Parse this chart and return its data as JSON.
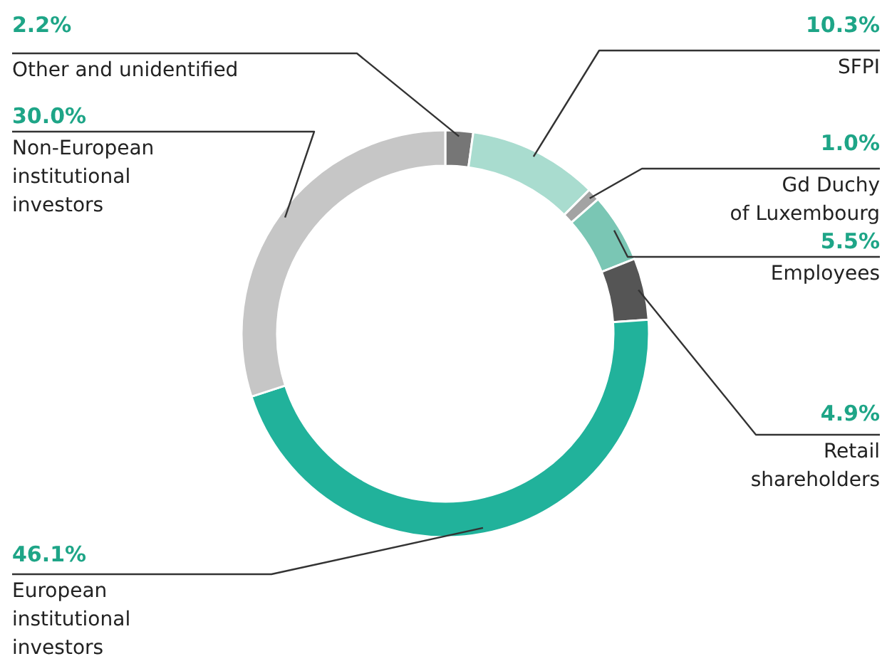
{
  "chart_data": {
    "type": "donut",
    "categories": [
      "Other and unidentified",
      "SFPI",
      "Gd Duchy\nof Luxembourg",
      "Employees",
      "Retail\nshareholders",
      "European\ninstitutional\ninvestors",
      "Non-European\ninstitutional\ninvestors"
    ],
    "values": [
      2.2,
      10.3,
      1.0,
      5.5,
      4.9,
      46.1,
      30.0
    ],
    "value_labels": [
      "2.2%",
      "10.3%",
      "1.0%",
      "5.5%",
      "4.9%",
      "46.1%",
      "30.0%"
    ],
    "colors": [
      "#767676",
      "#a9dccf",
      "#a3a3a3",
      "#7ac6b4",
      "#555555",
      "#21b29b",
      "#c6c6c6"
    ]
  }
}
